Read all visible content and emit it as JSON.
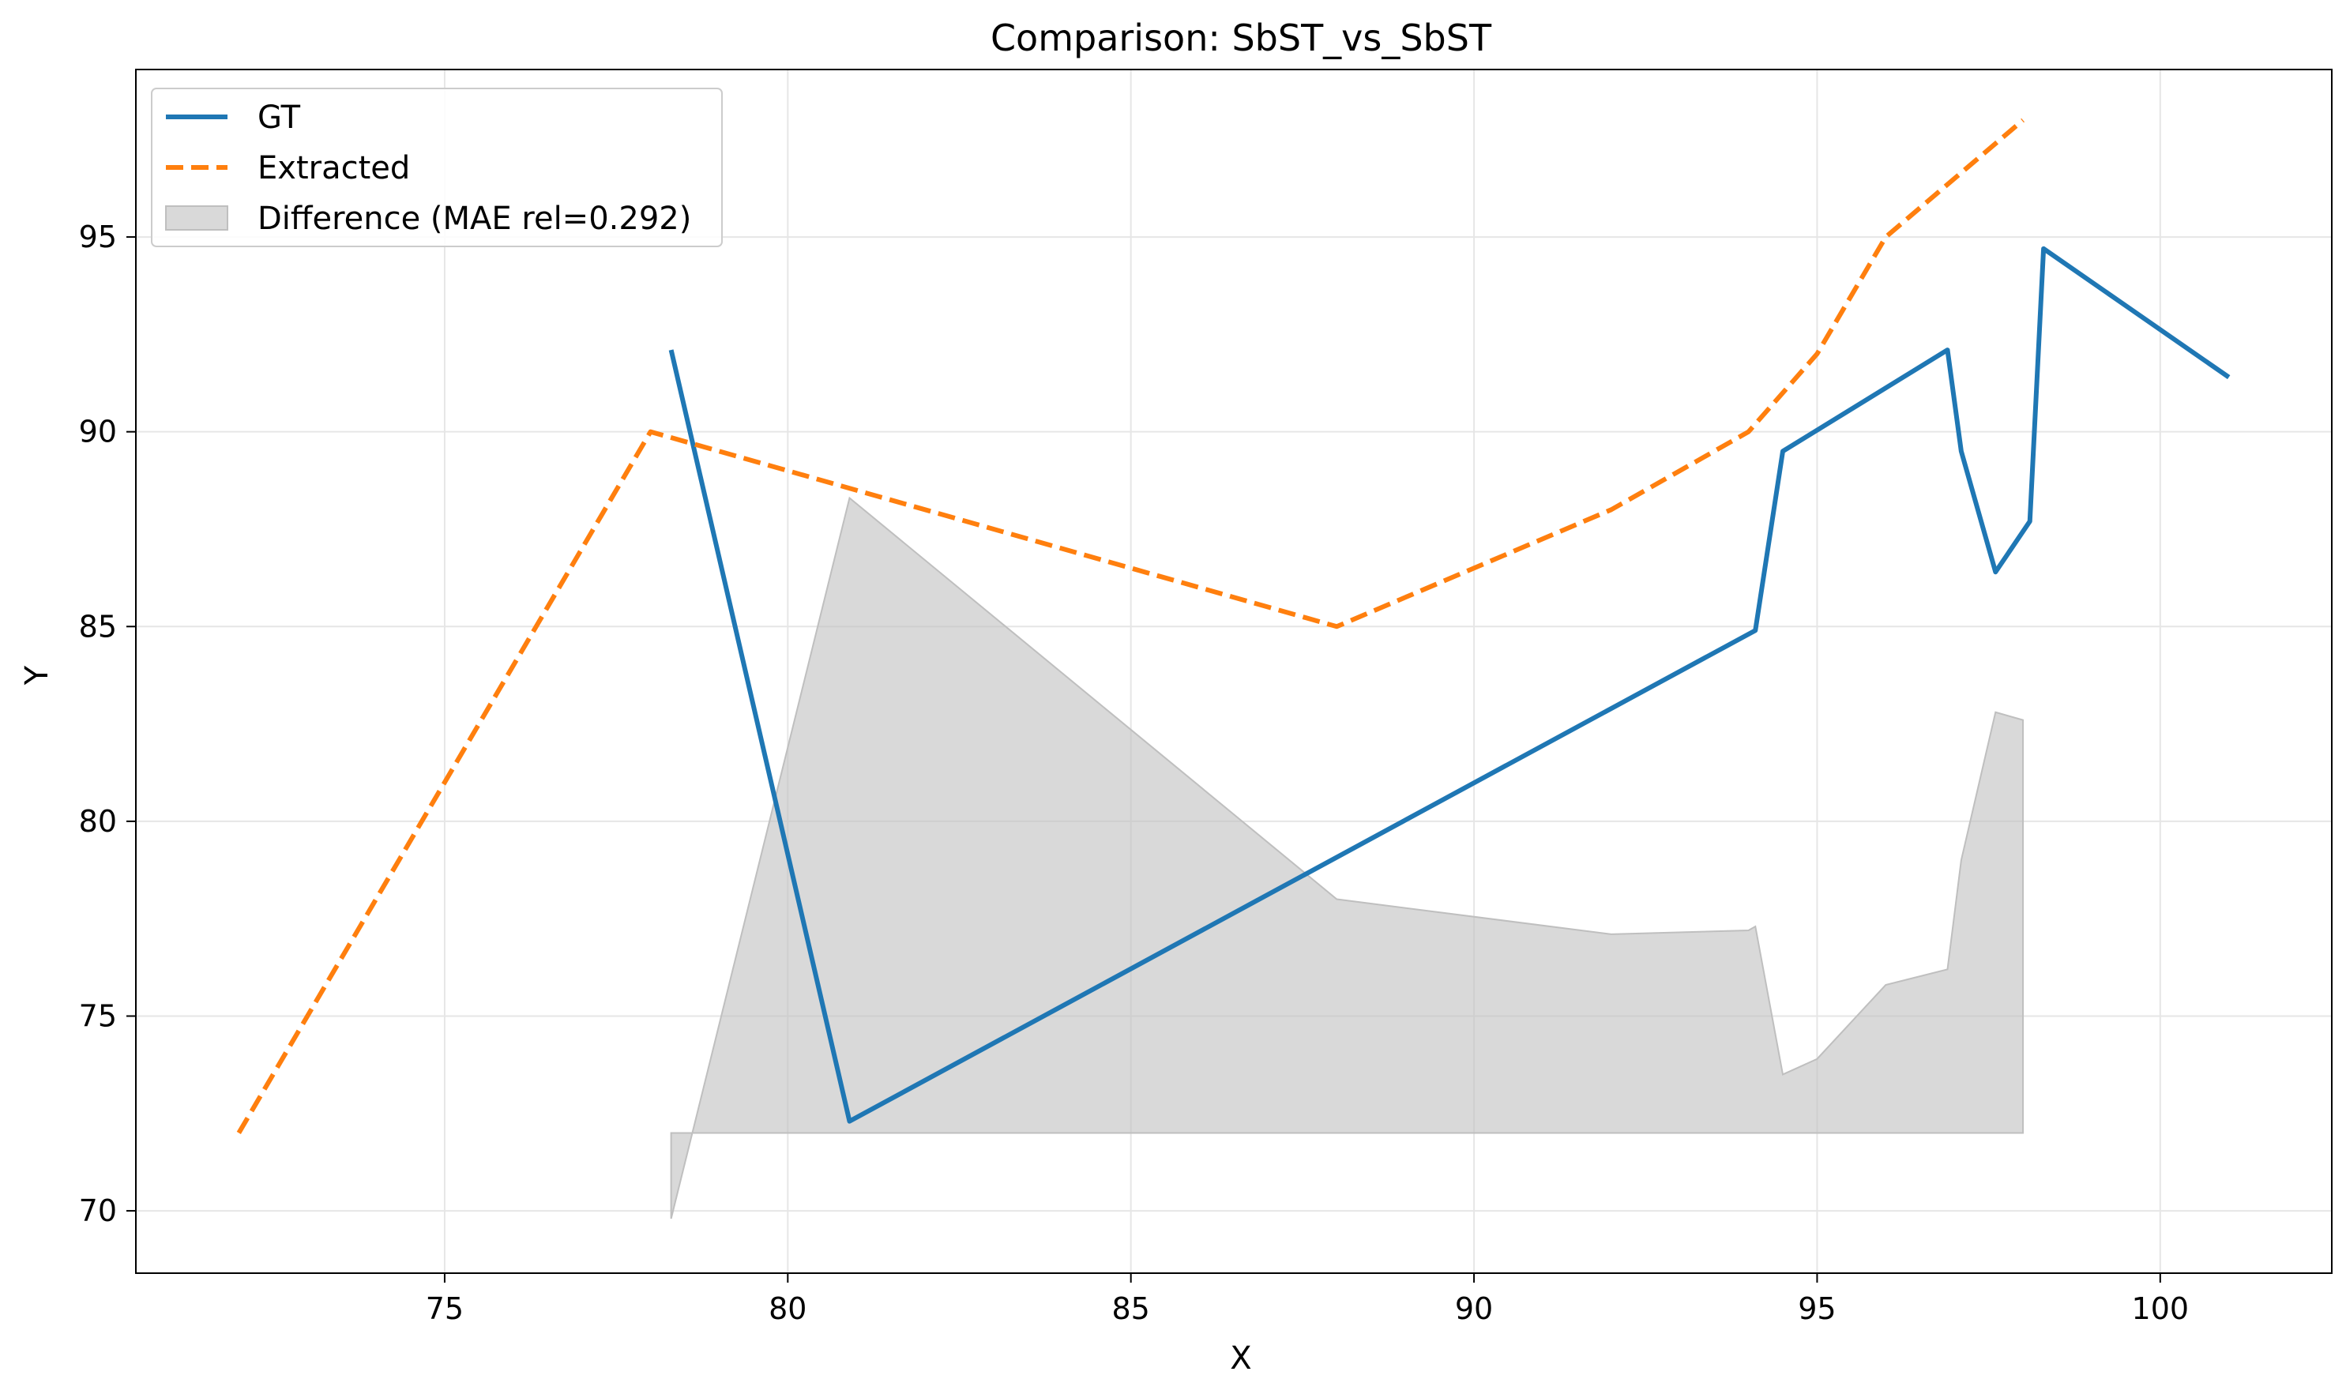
{
  "chart_data": {
    "type": "line",
    "title": "Comparison: SbST_vs_SbST",
    "xlabel": "X",
    "ylabel": "Y",
    "xlim": [
      70.5,
      102.5
    ],
    "ylim": [
      68.4,
      99.3
    ],
    "xticks": [
      75,
      80,
      85,
      90,
      95,
      100
    ],
    "yticks": [
      70,
      75,
      80,
      85,
      90,
      95
    ],
    "xtick_labels": [
      "75",
      "80",
      "85",
      "90",
      "95",
      "100"
    ],
    "ytick_labels": [
      "70",
      "75",
      "80",
      "85",
      "90",
      "95"
    ],
    "grid": true,
    "legend_position": "top-left",
    "series": [
      {
        "name": "GT",
        "color": "#1f77b4",
        "style": "solid",
        "x": [
          78.3,
          80.9,
          94.1,
          94.5,
          96.9,
          97.1,
          97.6,
          98.1,
          98.3,
          101.0
        ],
        "y": [
          92.1,
          72.3,
          84.9,
          89.5,
          92.1,
          89.5,
          86.4,
          87.7,
          94.7,
          91.4
        ]
      },
      {
        "name": "Extracted",
        "color": "#ff7f0e",
        "style": "dashed",
        "x": [
          72.0,
          78.0,
          88.0,
          92.0,
          94.0,
          95.0,
          96.0,
          98.0
        ],
        "y": [
          72.0,
          90.0,
          85.0,
          88.0,
          90.0,
          92.0,
          95.0,
          98.0
        ]
      },
      {
        "name": "Difference (MAE rel=0.292)",
        "color": "#bfbfbf",
        "style": "fill",
        "baseline": 72.0,
        "x": [
          78.3,
          80.9,
          88.0,
          92.0,
          94.0,
          94.1,
          94.5,
          95.0,
          96.0,
          96.9,
          97.1,
          97.6,
          98.0
        ],
        "y": [
          69.8,
          88.3,
          78.0,
          77.1,
          77.2,
          77.3,
          73.5,
          73.9,
          75.8,
          76.2,
          79.0,
          82.8,
          82.6
        ]
      }
    ]
  }
}
